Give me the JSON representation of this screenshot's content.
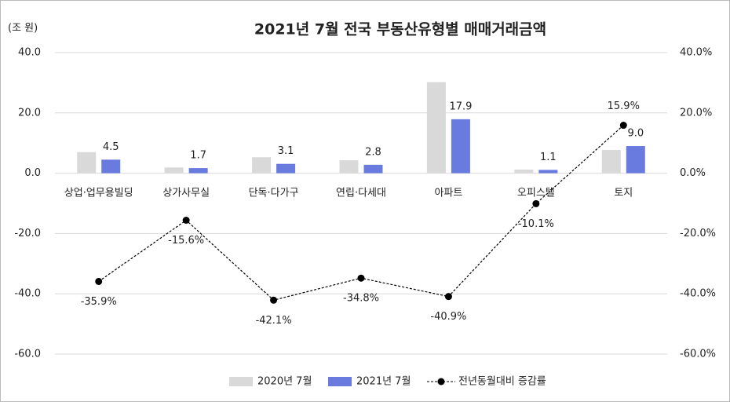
{
  "chart_data": {
    "type": "bar",
    "title": "2021년 7월 전국 부동산유형별 매매거래금액",
    "y_label": "(조 원)",
    "categories": [
      "상업·업무용빌딩",
      "상가사무실",
      "단독·다가구",
      "연립·다세대",
      "아파트",
      "오피스텔",
      "토지"
    ],
    "series": [
      {
        "name": "2020년 7월",
        "color": "#d9d9d9",
        "values": [
          7.0,
          1.9,
          5.3,
          4.3,
          30.2,
          1.2,
          7.7
        ]
      },
      {
        "name": "2021년 7월",
        "color": "#6a7be0",
        "values": [
          4.5,
          1.7,
          3.1,
          2.8,
          17.9,
          1.1,
          9.0
        ],
        "value_labels": [
          "4.5",
          "1.7",
          "3.1",
          "2.8",
          "17.9",
          "1.1",
          "9.0"
        ]
      },
      {
        "name": "전년동월대비 증감률",
        "color": "#000000",
        "axis": "y2",
        "values": [
          -35.9,
          -15.6,
          -42.1,
          -34.8,
          -40.9,
          -10.1,
          15.9
        ],
        "value_labels": [
          "-35.9%",
          "-15.6%",
          "-42.1%",
          "-34.8%",
          "-40.9%",
          "-10.1%",
          "15.9%"
        ]
      }
    ],
    "ylim": [
      -60,
      40
    ],
    "yticks": [
      {
        "value": 40,
        "label": "40.0"
      },
      {
        "value": 20,
        "label": "20.0"
      },
      {
        "value": 0,
        "label": "0.0"
      },
      {
        "value": -20,
        "label": "-20.0"
      },
      {
        "value": -40,
        "label": "-40.0"
      },
      {
        "value": -60,
        "label": "-60.0"
      }
    ],
    "y2lim": [
      -60,
      40
    ],
    "y2ticks": [
      {
        "value": 40,
        "label": "40.0%"
      },
      {
        "value": 20,
        "label": "20.0%"
      },
      {
        "value": 0,
        "label": "0.0%"
      },
      {
        "value": -20,
        "label": "-20.0%"
      },
      {
        "value": -40,
        "label": "-40.0%"
      },
      {
        "value": -60,
        "label": "-60.0%"
      }
    ],
    "grid": true,
    "legend": "bottom"
  }
}
